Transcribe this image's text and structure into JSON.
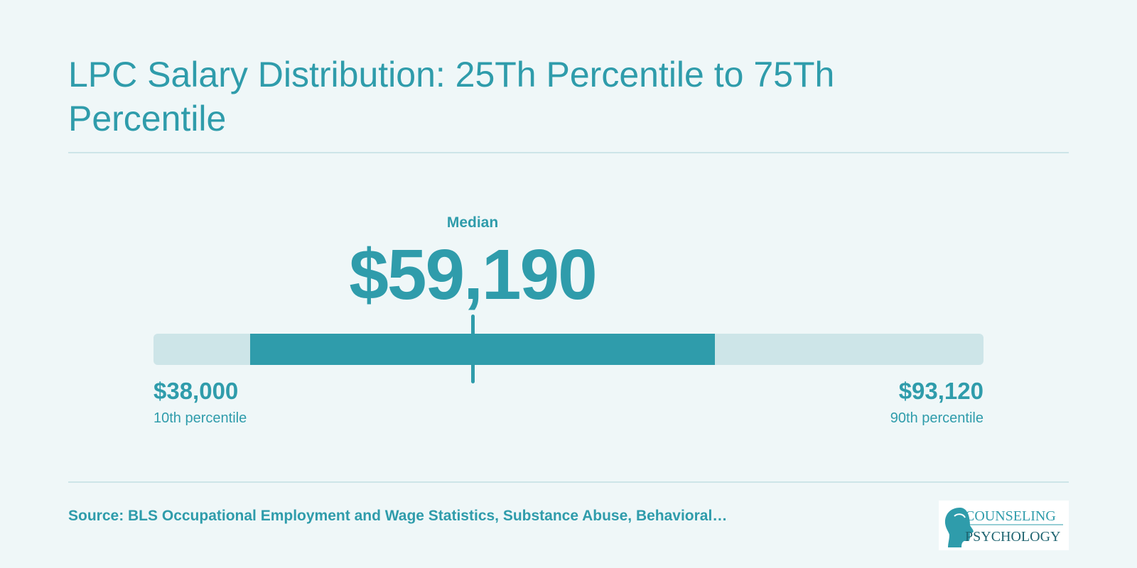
{
  "title": "LPC Salary Distribution: 25Th Percentile to 75Th Percentile",
  "chart_data": {
    "type": "range",
    "title": "LPC Salary Distribution: 25Th Percentile to 75Th Percentile",
    "range_min": 38000,
    "range_max": 93120,
    "percentile_25": 44400,
    "percentile_75": 75300,
    "median": 59190,
    "median_label": "Median",
    "median_text": "$59,190",
    "low": {
      "value": 38000,
      "text": "$38,000",
      "label": "10th percentile"
    },
    "high": {
      "value": 93120,
      "text": "$93,120",
      "label": "90th percentile"
    },
    "colors": {
      "range": "#2f9cab",
      "track": "#cde5e8",
      "text": "#2f9cab",
      "background": "#eff7f8"
    }
  },
  "source": "Source: BLS Occupational Employment and Wage Statistics, Substance Abuse, Behavioral…",
  "logo": {
    "line1": "COUNSELING",
    "line2": "PSYCHOLOGY",
    "icon": "head-silhouette-icon"
  }
}
